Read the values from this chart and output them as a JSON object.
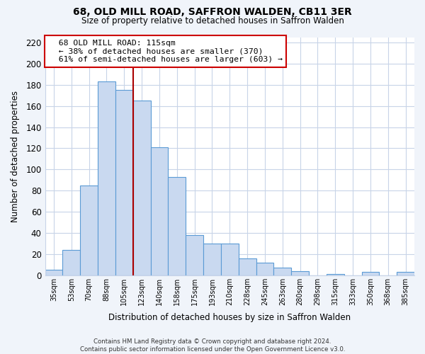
{
  "title": "68, OLD MILL ROAD, SAFFRON WALDEN, CB11 3ER",
  "subtitle": "Size of property relative to detached houses in Saffron Walden",
  "xlabel": "Distribution of detached houses by size in Saffron Walden",
  "ylabel": "Number of detached properties",
  "bar_labels": [
    "35sqm",
    "53sqm",
    "70sqm",
    "88sqm",
    "105sqm",
    "123sqm",
    "140sqm",
    "158sqm",
    "175sqm",
    "193sqm",
    "210sqm",
    "228sqm",
    "245sqm",
    "263sqm",
    "280sqm",
    "298sqm",
    "315sqm",
    "333sqm",
    "350sqm",
    "368sqm",
    "385sqm"
  ],
  "bar_values": [
    5,
    24,
    85,
    183,
    175,
    165,
    121,
    93,
    38,
    30,
    30,
    16,
    12,
    7,
    4,
    0,
    1,
    0,
    3,
    0,
    3
  ],
  "bar_color": "#c9d9f0",
  "bar_edge_color": "#5b9bd5",
  "vline_color": "#aa0000",
  "vline_index": 4.5,
  "annotation_title": "68 OLD MILL ROAD: 115sqm",
  "annotation_line1": "← 38% of detached houses are smaller (370)",
  "annotation_line2": "61% of semi-detached houses are larger (603) →",
  "annotation_box_color": "#ffffff",
  "annotation_box_edge": "#cc0000",
  "ylim": [
    0,
    225
  ],
  "yticks": [
    0,
    20,
    40,
    60,
    80,
    100,
    120,
    140,
    160,
    180,
    200,
    220
  ],
  "footer1": "Contains HM Land Registry data © Crown copyright and database right 2024.",
  "footer2": "Contains public sector information licensed under the Open Government Licence v3.0.",
  "plot_bg_color": "#ffffff",
  "fig_bg_color": "#f0f4fa",
  "grid_color": "#c8d4e8"
}
